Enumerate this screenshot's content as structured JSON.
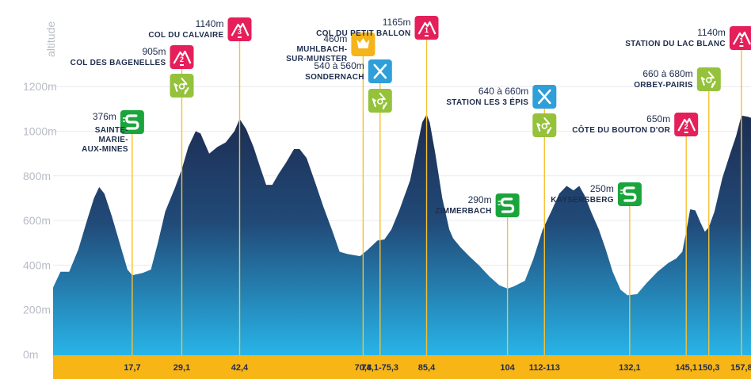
{
  "chart_data": {
    "type": "area",
    "ylabel": "altitude",
    "yunit": "m",
    "ylim": [
      0,
      1300
    ],
    "yticks": [
      {
        "value": 0,
        "label": "0m"
      },
      {
        "value": 200,
        "label": "200m"
      },
      {
        "value": 400,
        "label": "400m"
      },
      {
        "value": 600,
        "label": "600m"
      },
      {
        "value": 800,
        "label": "800m"
      },
      {
        "value": 1000,
        "label": "1000m"
      },
      {
        "value": 1200,
        "label": "1200m"
      }
    ],
    "xlim": [
      -0.5,
      160.0
    ],
    "colors": {
      "area_top": "#1d2d52",
      "area_bottom": "#28b4e8",
      "band": "#f8b516",
      "marker_line": "#f6c033",
      "climb": "#e51f5a",
      "sprint": "#1aa53c",
      "feed": "#95c23b",
      "refuel": "#2e9fd9",
      "bonus": "#f4b41a",
      "text": "#1f2d4d",
      "axis_text": "#b7bcc4"
    },
    "profile": [
      [
        -0.5,
        300
      ],
      [
        1.2,
        370
      ],
      [
        3.2,
        370
      ],
      [
        5.3,
        470
      ],
      [
        7.3,
        600
      ],
      [
        8.9,
        700
      ],
      [
        10.1,
        750
      ],
      [
        11.3,
        720
      ],
      [
        13.0,
        620
      ],
      [
        14.8,
        500
      ],
      [
        16.6,
        380
      ],
      [
        17.7,
        355
      ],
      [
        20.1,
        365
      ],
      [
        22.0,
        380
      ],
      [
        23.6,
        500
      ],
      [
        25.3,
        640
      ],
      [
        27.6,
        750
      ],
      [
        29.1,
        830
      ],
      [
        30.6,
        930
      ],
      [
        32.3,
        1000
      ],
      [
        33.4,
        990
      ],
      [
        35.4,
        900
      ],
      [
        37.3,
        930
      ],
      [
        39.2,
        950
      ],
      [
        41.2,
        1000
      ],
      [
        42.4,
        1055
      ],
      [
        43.9,
        1010
      ],
      [
        45.6,
        930
      ],
      [
        47.1,
        840
      ],
      [
        48.5,
        760
      ],
      [
        49.9,
        760
      ],
      [
        51.4,
        810
      ],
      [
        53.1,
        860
      ],
      [
        54.9,
        920
      ],
      [
        56.2,
        920
      ],
      [
        57.8,
        880
      ],
      [
        59.6,
        780
      ],
      [
        61.7,
        660
      ],
      [
        63.8,
        550
      ],
      [
        65.4,
        460
      ],
      [
        67.1,
        450
      ],
      [
        70.1,
        440
      ],
      [
        71.9,
        470
      ],
      [
        74.1,
        510
      ],
      [
        75.7,
        515
      ],
      [
        77.3,
        560
      ],
      [
        79.2,
        650
      ],
      [
        81.6,
        780
      ],
      [
        83.1,
        920
      ],
      [
        84.4,
        1040
      ],
      [
        85.4,
        1075
      ],
      [
        86.1,
        1040
      ],
      [
        87.4,
        900
      ],
      [
        89.0,
        700
      ],
      [
        90.6,
        560
      ],
      [
        91.5,
        520
      ],
      [
        93.2,
        480
      ],
      [
        95.2,
        440
      ],
      [
        97.4,
        400
      ],
      [
        99.8,
        350
      ],
      [
        102.1,
        310
      ],
      [
        104.0,
        295
      ],
      [
        105.5,
        305
      ],
      [
        108.0,
        330
      ],
      [
        110.0,
        430
      ],
      [
        112.1,
        560
      ],
      [
        114.3,
        650
      ],
      [
        115.9,
        720
      ],
      [
        117.6,
        755
      ],
      [
        119.2,
        735
      ],
      [
        120.5,
        755
      ],
      [
        121.8,
        710
      ],
      [
        123.2,
        640
      ],
      [
        125.0,
        560
      ],
      [
        126.6,
        470
      ],
      [
        128.2,
        370
      ],
      [
        130.0,
        290
      ],
      [
        131.6,
        265
      ],
      [
        133.8,
        270
      ],
      [
        136.0,
        320
      ],
      [
        138.5,
        370
      ],
      [
        141.0,
        410
      ],
      [
        142.8,
        430
      ],
      [
        144.2,
        460
      ],
      [
        145.1,
        550
      ],
      [
        146.0,
        650
      ],
      [
        147.2,
        645
      ],
      [
        148.4,
        590
      ],
      [
        149.4,
        550
      ],
      [
        150.3,
        570
      ],
      [
        151.6,
        640
      ],
      [
        153.4,
        790
      ],
      [
        155.2,
        900
      ],
      [
        156.6,
        980
      ],
      [
        157.8,
        1070
      ],
      [
        159.3,
        1065
      ],
      [
        160.0,
        1060
      ]
    ],
    "km_ticks": [
      "17,7",
      "29,1",
      "42,4",
      "70,8",
      "74,1-75,3",
      "85,4",
      "104",
      "112-113",
      "132,1",
      "145,1",
      "150,3",
      "157,8"
    ],
    "km_tick_positions": [
      17.7,
      29.1,
      42.4,
      70.8,
      74.7,
      85.4,
      104.0,
      112.5,
      132.1,
      145.1,
      150.3,
      157.8
    ],
    "annotations": [
      {
        "type": "sprint",
        "km": 17.7,
        "altitude": "376m",
        "name": [
          "SAINTE-",
          "MARIE-",
          "AUX-MINES"
        ]
      },
      {
        "type": "climb",
        "category": "2",
        "km": 29.1,
        "altitude": "905m",
        "name": [
          "COL DES BAGENELLES"
        ]
      },
      {
        "type": "feed",
        "km": 29.1
      },
      {
        "type": "climb",
        "category": "3",
        "km": 42.4,
        "altitude": "1140m",
        "name": [
          "COL DU CALVAIRE"
        ]
      },
      {
        "type": "bonus",
        "km": 70.8,
        "altitude": "460m",
        "name": [
          "MUHLBACH-",
          "SUR-MUNSTER"
        ]
      },
      {
        "type": "refuel",
        "km": 74.7,
        "altitude": "540 à 560m",
        "name": [
          "SONDERNACH"
        ]
      },
      {
        "type": "feed",
        "km": 74.7
      },
      {
        "type": "climb",
        "category": "1",
        "km": 85.4,
        "altitude": "1165m",
        "name": [
          "COL DU PETIT BALLON"
        ]
      },
      {
        "type": "sprint",
        "km": 104.0,
        "altitude": "290m",
        "name": [
          "ZIMMERBACH"
        ]
      },
      {
        "type": "refuel",
        "km": 112.5,
        "altitude": "640 à 660m",
        "name": [
          "STATION LES 3 ÉPIS"
        ]
      },
      {
        "type": "feed",
        "km": 112.5
      },
      {
        "type": "sprint",
        "km": 132.1,
        "altitude": "250m",
        "name": [
          "KAYSERSBERG"
        ]
      },
      {
        "type": "climb",
        "category": "2",
        "km": 145.1,
        "altitude": "650m",
        "name": [
          "CÔTE DU BOUTON D'OR"
        ]
      },
      {
        "type": "feed",
        "km": 150.3,
        "altitude": "660 à 680m",
        "name": [
          "ORBEY-PAIRIS"
        ]
      },
      {
        "type": "climb",
        "category": "1",
        "km": 157.8,
        "altitude": "1140m",
        "name": [
          "STATION DU LAC BLANC"
        ]
      }
    ]
  }
}
